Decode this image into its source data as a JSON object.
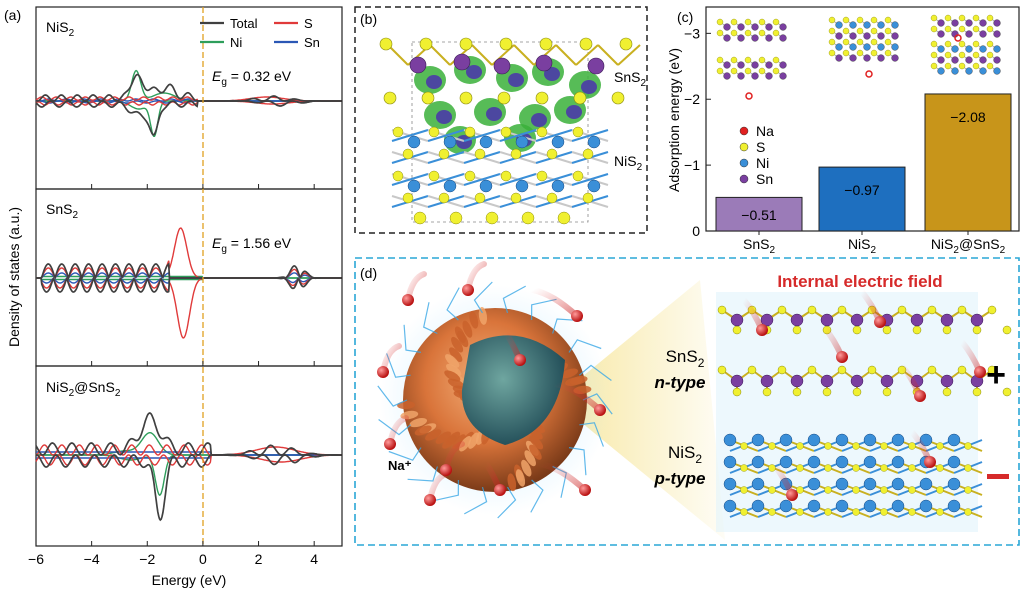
{
  "panels": {
    "a": {
      "label": "(a)",
      "ylabel": "Density of states (a.u.)",
      "xlabel": "Energy (eV)",
      "xticks": [
        "−6",
        "−4",
        "−2",
        "0",
        "2",
        "4"
      ],
      "legend": [
        {
          "name": "Total",
          "color": "#404040"
        },
        {
          "name": "S",
          "color": "#e03a3a"
        },
        {
          "name": "Ni",
          "color": "#2e9e5b"
        },
        {
          "name": "Sn",
          "color": "#2b57b5"
        }
      ],
      "subplots": [
        {
          "name_base": "NiS",
          "name_sub": "2",
          "eg_prefix": "E",
          "eg_sub": "g",
          "eg_value": " = 0.32 eV"
        },
        {
          "name_base": "SnS",
          "name_sub": "2",
          "eg_prefix": "E",
          "eg_sub": "g",
          "eg_value": " = 1.56 eV"
        },
        {
          "name_base": "NiS",
          "name_sub": "2",
          "name_mid": "@SnS",
          "name_sub2": "2"
        }
      ],
      "fermi_color": "#e0a020"
    },
    "b": {
      "label": "(b)",
      "top_label_base": "SnS",
      "top_label_sub": "2",
      "bottom_label_base": "NiS",
      "bottom_label_sub": "2"
    },
    "c": {
      "label": "(c)",
      "ylabel": "Adsorption energy (eV)",
      "legend": [
        {
          "name": "Na",
          "color": "#e02020"
        },
        {
          "name": "S",
          "color": "#f0f030"
        },
        {
          "name": "Ni",
          "color": "#3a8fd8"
        },
        {
          "name": "Sn",
          "color": "#7a3fa0"
        }
      ]
    },
    "d": {
      "label": "(d)",
      "title": "Internal  electric field",
      "sns2_base": "SnS",
      "sns2_sub": "2",
      "sns2_type": "n-type",
      "nis2_base": "NiS",
      "nis2_sub": "2",
      "nis2_type": "p-type",
      "ion_label": "Na⁺",
      "plus": "+",
      "minus": "−"
    }
  },
  "chart_data": [
    {
      "type": "line",
      "title": "",
      "xlabel": "Energy (eV)",
      "ylabel": "Density of states (a.u.)",
      "xlim": [
        -6,
        5
      ],
      "series": [
        {
          "name": "Total",
          "color": "#404040"
        },
        {
          "name": "S",
          "color": "#e03a3a"
        },
        {
          "name": "Ni",
          "color": "#2e9e5b"
        },
        {
          "name": "Sn",
          "color": "#2b57b5"
        }
      ]
    },
    {
      "type": "bar",
      "title": "",
      "categories": [
        "SnS2",
        "NiS2",
        "NiS2@SnS2"
      ],
      "category_labels": [
        {
          "base": "SnS",
          "sub": "2",
          "mid": "",
          "sub2": ""
        },
        {
          "base": "NiS",
          "sub": "2",
          "mid": "",
          "sub2": ""
        },
        {
          "base": "NiS",
          "sub": "2",
          "mid": "@SnS",
          "sub2": "2"
        }
      ],
      "values": [
        -0.51,
        -0.97,
        -2.08
      ],
      "value_labels": [
        "−0.51",
        "−0.97",
        "−2.08"
      ],
      "colors": [
        "#9b7bb8",
        "#1e6fbf",
        "#c8951a"
      ],
      "ylabel": "Adsorption energy (eV)",
      "ylim": [
        0,
        -3.4
      ],
      "yticks": [
        0,
        -1,
        -2,
        -3
      ],
      "ytick_labels": [
        "0",
        "−1",
        "−2",
        "−3"
      ]
    }
  ]
}
